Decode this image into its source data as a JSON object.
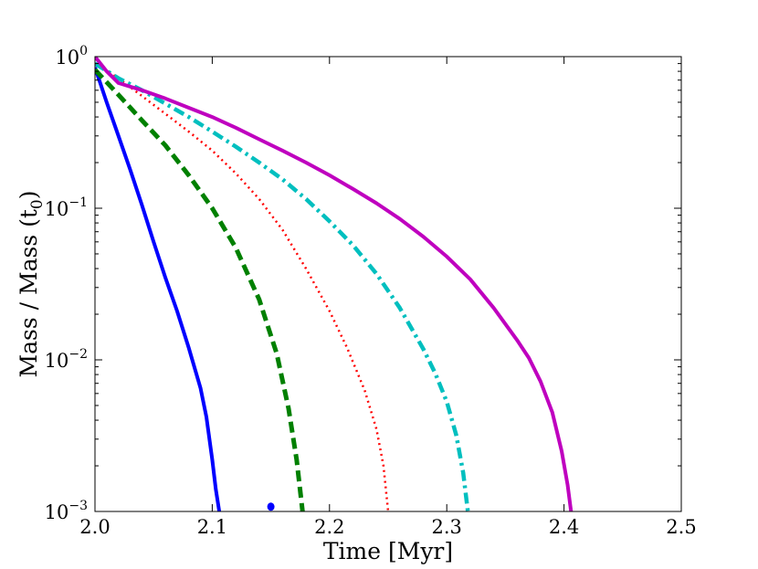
{
  "chart_data": {
    "type": "line",
    "xlabel": "Time [Myr]",
    "ylabel": "Mass / Mass (t",
    "ylabel_subscript": "0",
    "ylabel_suffix": ")",
    "xlim": [
      2.0,
      2.5
    ],
    "ylim": [
      0.001,
      1.0
    ],
    "yscale": "log",
    "grid": false,
    "x_ticks": [
      2.0,
      2.1,
      2.2,
      2.3,
      2.4,
      2.5
    ],
    "x_tick_labels": [
      "2.0",
      "2.1",
      "2.2",
      "2.3",
      "2.4",
      "2.5"
    ],
    "y_ticks": [
      0.001,
      0.01,
      0.1,
      1.0
    ],
    "y_tick_labels": [
      {
        "base": "10",
        "exp": "−3"
      },
      {
        "base": "10",
        "exp": "−2"
      },
      {
        "base": "10",
        "exp": "−1"
      },
      {
        "base": "10",
        "exp": "0"
      }
    ],
    "series": [
      {
        "color": "#0000ff",
        "style": "solid",
        "x": [
          2.0,
          2.01,
          2.02,
          2.03,
          2.04,
          2.05,
          2.06,
          2.07,
          2.08,
          2.09,
          2.095,
          2.1,
          2.103,
          2.106
        ],
        "y": [
          0.85,
          0.5,
          0.3,
          0.18,
          0.105,
          0.06,
          0.035,
          0.021,
          0.012,
          0.0065,
          0.0042,
          0.0022,
          0.0014,
          0.001
        ],
        "marker": {
          "x": 2.15,
          "y": 0.00106
        }
      },
      {
        "color": "#008000",
        "style": "dashed",
        "x": [
          2.0,
          2.02,
          2.04,
          2.06,
          2.08,
          2.1,
          2.12,
          2.14,
          2.155,
          2.165,
          2.172,
          2.177
        ],
        "y": [
          0.82,
          0.56,
          0.38,
          0.26,
          0.165,
          0.1,
          0.055,
          0.025,
          0.011,
          0.0048,
          0.0022,
          0.001
        ]
      },
      {
        "color": "#ff0000",
        "style": "dotted",
        "x": [
          2.0,
          2.02,
          2.04,
          2.06,
          2.08,
          2.1,
          2.12,
          2.14,
          2.16,
          2.18,
          2.2,
          2.215,
          2.23,
          2.24,
          2.246,
          2.25
        ],
        "y": [
          0.9,
          0.72,
          0.55,
          0.42,
          0.32,
          0.24,
          0.17,
          0.115,
          0.072,
          0.04,
          0.021,
          0.012,
          0.0063,
          0.0035,
          0.002,
          0.001
        ]
      },
      {
        "color": "#00bfbf",
        "style": "dashdot",
        "x": [
          2.0,
          2.02,
          2.04,
          2.06,
          2.08,
          2.1,
          2.12,
          2.14,
          2.16,
          2.18,
          2.2,
          2.22,
          2.24,
          2.26,
          2.28,
          2.29,
          2.3,
          2.308,
          2.314,
          2.318
        ],
        "y": [
          0.9,
          0.72,
          0.6,
          0.49,
          0.4,
          0.32,
          0.255,
          0.2,
          0.155,
          0.115,
          0.082,
          0.057,
          0.037,
          0.022,
          0.0118,
          0.0082,
          0.0053,
          0.0032,
          0.0018,
          0.001
        ]
      },
      {
        "color": "#bf00bf",
        "style": "solid",
        "x": [
          2.0,
          2.01,
          2.02,
          2.04,
          2.06,
          2.08,
          2.1,
          2.12,
          2.14,
          2.16,
          2.18,
          2.2,
          2.22,
          2.24,
          2.26,
          2.28,
          2.3,
          2.32,
          2.34,
          2.36,
          2.37,
          2.38,
          2.39,
          2.398,
          2.403,
          2.406
        ],
        "y": [
          1.0,
          0.8,
          0.67,
          0.6,
          0.53,
          0.46,
          0.4,
          0.34,
          0.285,
          0.24,
          0.2,
          0.165,
          0.134,
          0.108,
          0.085,
          0.065,
          0.048,
          0.034,
          0.022,
          0.0135,
          0.0103,
          0.0072,
          0.0045,
          0.0025,
          0.0015,
          0.001
        ]
      }
    ]
  }
}
